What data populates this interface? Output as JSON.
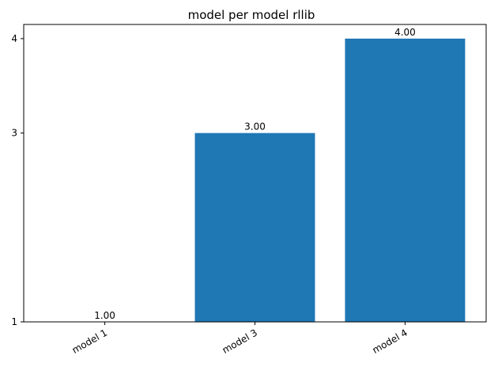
{
  "chart_data": {
    "type": "bar",
    "title": "model per model rllib",
    "xlabel": "",
    "ylabel": "",
    "categories": [
      "model 1",
      "model 3",
      "model 4"
    ],
    "values": [
      1.0,
      3.0,
      4.0
    ],
    "data_labels": [
      "1.00",
      "3.00",
      "4.00"
    ],
    "ylim": [
      1,
      4
    ],
    "yticks": [
      1,
      3,
      4
    ],
    "ytick_labels": [
      "1",
      "3",
      "4"
    ],
    "bar_color": "#1f77b4",
    "grid": false,
    "legend": "none"
  }
}
